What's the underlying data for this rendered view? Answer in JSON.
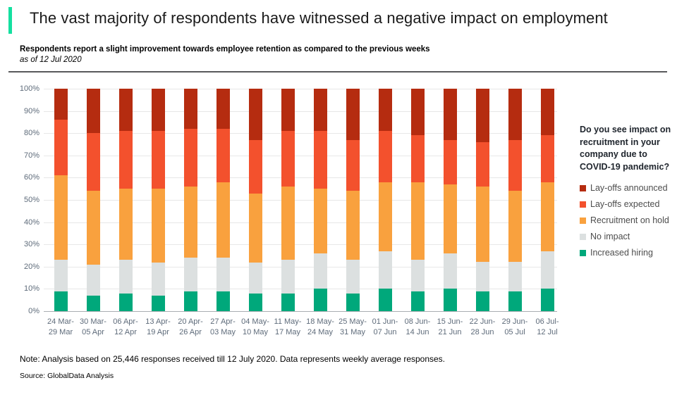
{
  "header": {
    "title": "The vast majority of respondents have witnessed a negative impact on employment",
    "subtitle": "Respondents report a slight improvement towards employee retention as compared to the previous weeks",
    "as_of": "as of 12 Jul 2020",
    "accent_color": "#14e0a0"
  },
  "legend": {
    "question": "Do you see impact on recruitment in your company due to COVID-19 pandemic?",
    "items": [
      {
        "label": "Lay-offs announced",
        "color": "#b52c10"
      },
      {
        "label": "Lay-offs expected",
        "color": "#f3512d"
      },
      {
        "label": "Recruitment on hold",
        "color": "#f9a13e"
      },
      {
        "label": "No impact",
        "color": "#dce0e0"
      },
      {
        "label": "Increased hiring",
        "color": "#00a87b"
      }
    ]
  },
  "chart_data": {
    "type": "bar",
    "stacked": true,
    "unit": "%",
    "ylim": [
      0,
      100
    ],
    "grid": true,
    "legend_position": "right",
    "y_ticks": [
      "0%",
      "10%",
      "20%",
      "30%",
      "40%",
      "50%",
      "60%",
      "70%",
      "80%",
      "90%",
      "100%"
    ],
    "categories": [
      [
        "24 Mar-",
        "29 Mar"
      ],
      [
        "30 Mar-",
        "05 Apr"
      ],
      [
        "06 Apr-",
        "12 Apr"
      ],
      [
        "13 Apr-",
        "19 Apr"
      ],
      [
        "20 Apr-",
        "26 Apr"
      ],
      [
        "27 Apr-",
        "03 May"
      ],
      [
        "04 May-",
        "10 May"
      ],
      [
        "11 May-",
        "17 May"
      ],
      [
        "18 May-",
        "24 May"
      ],
      [
        "25 May-",
        "31 May"
      ],
      [
        "01 Jun-",
        "07 Jun"
      ],
      [
        "08 Jun-",
        "14 Jun"
      ],
      [
        "15 Jun-",
        "21 Jun"
      ],
      [
        "22 Jun-",
        "28 Jun"
      ],
      [
        "29 Jun-",
        "05 Jul"
      ],
      [
        "06 Jul-",
        "12 Jul"
      ]
    ],
    "series": [
      {
        "name": "Increased hiring",
        "color": "#00a87b",
        "values": [
          9,
          7,
          8,
          7,
          9,
          9,
          8,
          8,
          10,
          8,
          10,
          9,
          10,
          9,
          9,
          10
        ]
      },
      {
        "name": "No impact",
        "color": "#dce0e0",
        "values": [
          14,
          14,
          15,
          15,
          15,
          15,
          14,
          15,
          16,
          15,
          17,
          14,
          16,
          13,
          13,
          17
        ]
      },
      {
        "name": "Recruitment on hold",
        "color": "#f9a13e",
        "values": [
          38,
          33,
          32,
          33,
          32,
          34,
          31,
          33,
          29,
          31,
          31,
          35,
          31,
          34,
          32,
          31
        ]
      },
      {
        "name": "Lay-offs expected",
        "color": "#f3512d",
        "values": [
          25,
          26,
          26,
          26,
          26,
          24,
          24,
          25,
          26,
          23,
          23,
          21,
          20,
          20,
          23,
          21
        ]
      },
      {
        "name": "Lay-offs announced",
        "color": "#b52c10",
        "values": [
          14,
          20,
          19,
          19,
          18,
          18,
          23,
          19,
          19,
          23,
          19,
          21,
          23,
          24,
          23,
          21
        ]
      }
    ]
  },
  "footer": {
    "note": "Note: Analysis based on 25,446 responses received till 12 July 2020. Data represents weekly average responses.",
    "source": "Source: GlobalData Analysis"
  }
}
